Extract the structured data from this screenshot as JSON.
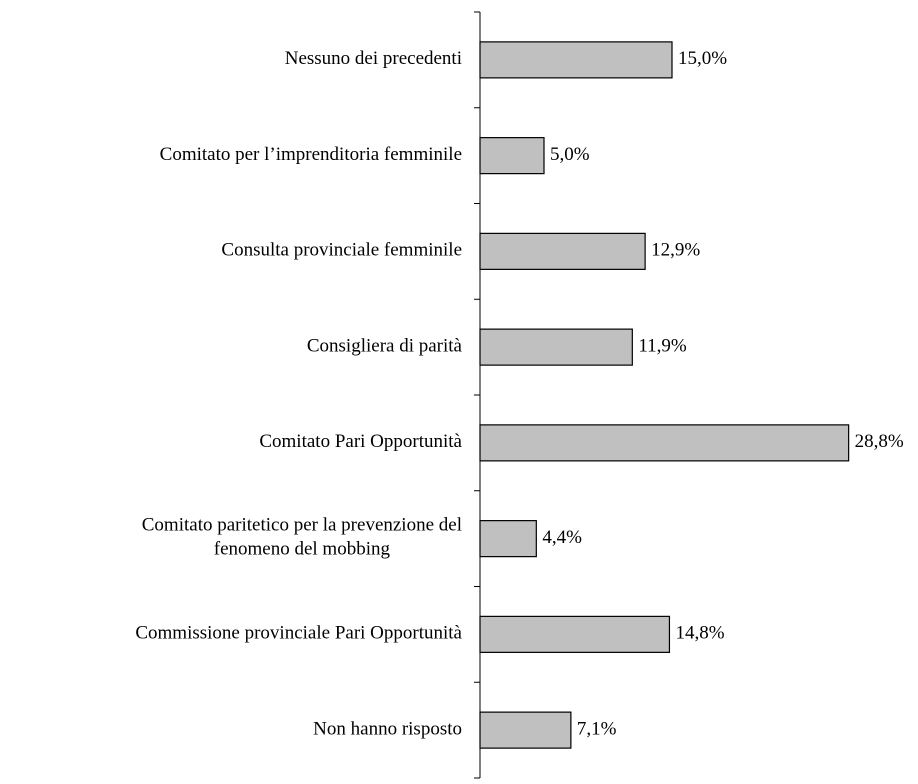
{
  "chart_data": {
    "type": "bar",
    "orientation": "horizontal",
    "categories": [
      "Nessuno dei precedenti",
      "Comitato per l’imprenditoria femminile",
      "Consulta provinciale femminile",
      "Consigliera di parità",
      "Comitato Pari Opportunità",
      "Comitato paritetico per la prevenzione del fenomeno del mobbing",
      "Commissione provinciale Pari Opportunità",
      "Non hanno risposto"
    ],
    "values": [
      15.0,
      5.0,
      12.9,
      11.9,
      28.8,
      4.4,
      14.8,
      7.1
    ],
    "value_labels": [
      "15,0%",
      "5,0%",
      "12,9%",
      "11,9%",
      "28,8%",
      "4,4%",
      "14,8%",
      "7,1%"
    ],
    "color": "#c0c0c0"
  }
}
